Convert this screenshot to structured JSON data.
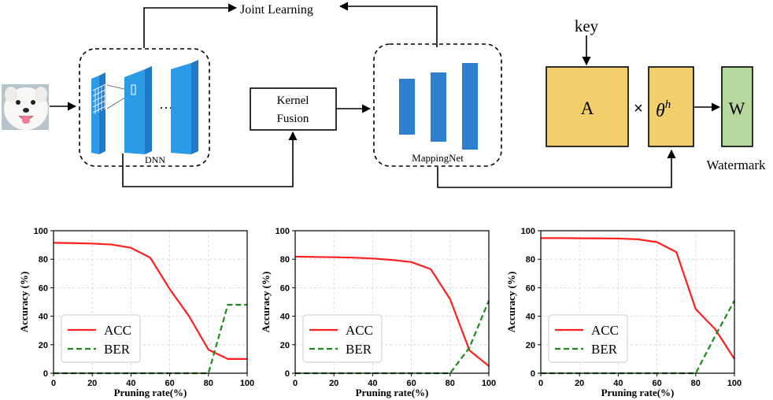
{
  "diagram": {
    "joint_learning": "Joint Learning",
    "dnn": "DNN",
    "ellipsis": "···",
    "kernel_fusion_line1": "Kernel",
    "kernel_fusion_line2": "Fusion",
    "mappingnet": "MappingNet",
    "key": "key",
    "matrix_a": "A",
    "times": "×",
    "theta": "θ",
    "theta_sup": "h",
    "w": "W",
    "watermark": "Watermark",
    "colors": {
      "dnn_blue": "#2b9be8",
      "map_blue": "#2f7fd1",
      "gold": "#f2cf6b",
      "green": "#b7d89d"
    }
  },
  "chart_data": [
    {
      "type": "line",
      "x": [
        0,
        10,
        20,
        30,
        40,
        50,
        60,
        70,
        80,
        90,
        100
      ],
      "series": [
        {
          "name": "ACC",
          "color": "#ff2020",
          "dash": "solid",
          "values": [
            91.5,
            91.3,
            91.0,
            90.3,
            88,
            81,
            59,
            40,
            16.5,
            10,
            10
          ]
        },
        {
          "name": "BER",
          "color": "#1e8a1e",
          "dash": "dashed",
          "values": [
            0,
            0,
            0,
            0,
            0,
            0,
            0,
            0,
            0,
            48,
            48
          ]
        }
      ],
      "xlabel": "Pruning rate(%)",
      "ylabel": "Accuracy (%)",
      "xlim": [
        0,
        100
      ],
      "ylim": [
        0,
        100
      ],
      "xticks": [
        "0",
        "20",
        "40",
        "60",
        "80",
        "100"
      ],
      "yticks": [
        "0",
        "20",
        "40",
        "60",
        "80",
        "100"
      ],
      "grid": true,
      "legend": "bottom-left"
    },
    {
      "type": "line",
      "x": [
        0,
        10,
        20,
        30,
        40,
        50,
        60,
        70,
        80,
        90,
        100
      ],
      "series": [
        {
          "name": "ACC",
          "color": "#ff2020",
          "dash": "solid",
          "values": [
            81.8,
            81.6,
            81.4,
            81.1,
            80.5,
            79.5,
            78,
            73,
            52,
            16,
            5
          ]
        },
        {
          "name": "BER",
          "color": "#1e8a1e",
          "dash": "dashed",
          "values": [
            0,
            0,
            0,
            0,
            0,
            0,
            0,
            0,
            0,
            18,
            51
          ]
        }
      ],
      "xlabel": "Pruning rate(%)",
      "ylabel": "Accuracy (%)",
      "xlim": [
        0,
        100
      ],
      "ylim": [
        0,
        100
      ],
      "xticks": [
        "0",
        "20",
        "40",
        "60",
        "80",
        "100"
      ],
      "yticks": [
        "0",
        "20",
        "40",
        "60",
        "80",
        "100"
      ],
      "grid": true,
      "legend": "bottom-left"
    },
    {
      "type": "line",
      "x": [
        0,
        10,
        20,
        30,
        40,
        50,
        60,
        70,
        80,
        90,
        100
      ],
      "series": [
        {
          "name": "ACC",
          "color": "#ff2020",
          "dash": "solid",
          "values": [
            94.8,
            94.8,
            94.7,
            94.6,
            94.5,
            94,
            92,
            85,
            45,
            31,
            10
          ]
        },
        {
          "name": "BER",
          "color": "#1e8a1e",
          "dash": "dashed",
          "values": [
            0,
            0,
            0,
            0,
            0,
            0,
            0,
            0,
            0,
            26,
            51
          ]
        }
      ],
      "xlabel": "Pruning rate(%)",
      "ylabel": "Accuracy (%)",
      "xlim": [
        0,
        100
      ],
      "ylim": [
        0,
        100
      ],
      "xticks": [
        "0",
        "20",
        "40",
        "60",
        "80",
        "100"
      ],
      "yticks": [
        "0",
        "20",
        "40",
        "60",
        "80",
        "100"
      ],
      "grid": true,
      "legend": "bottom-left"
    }
  ]
}
